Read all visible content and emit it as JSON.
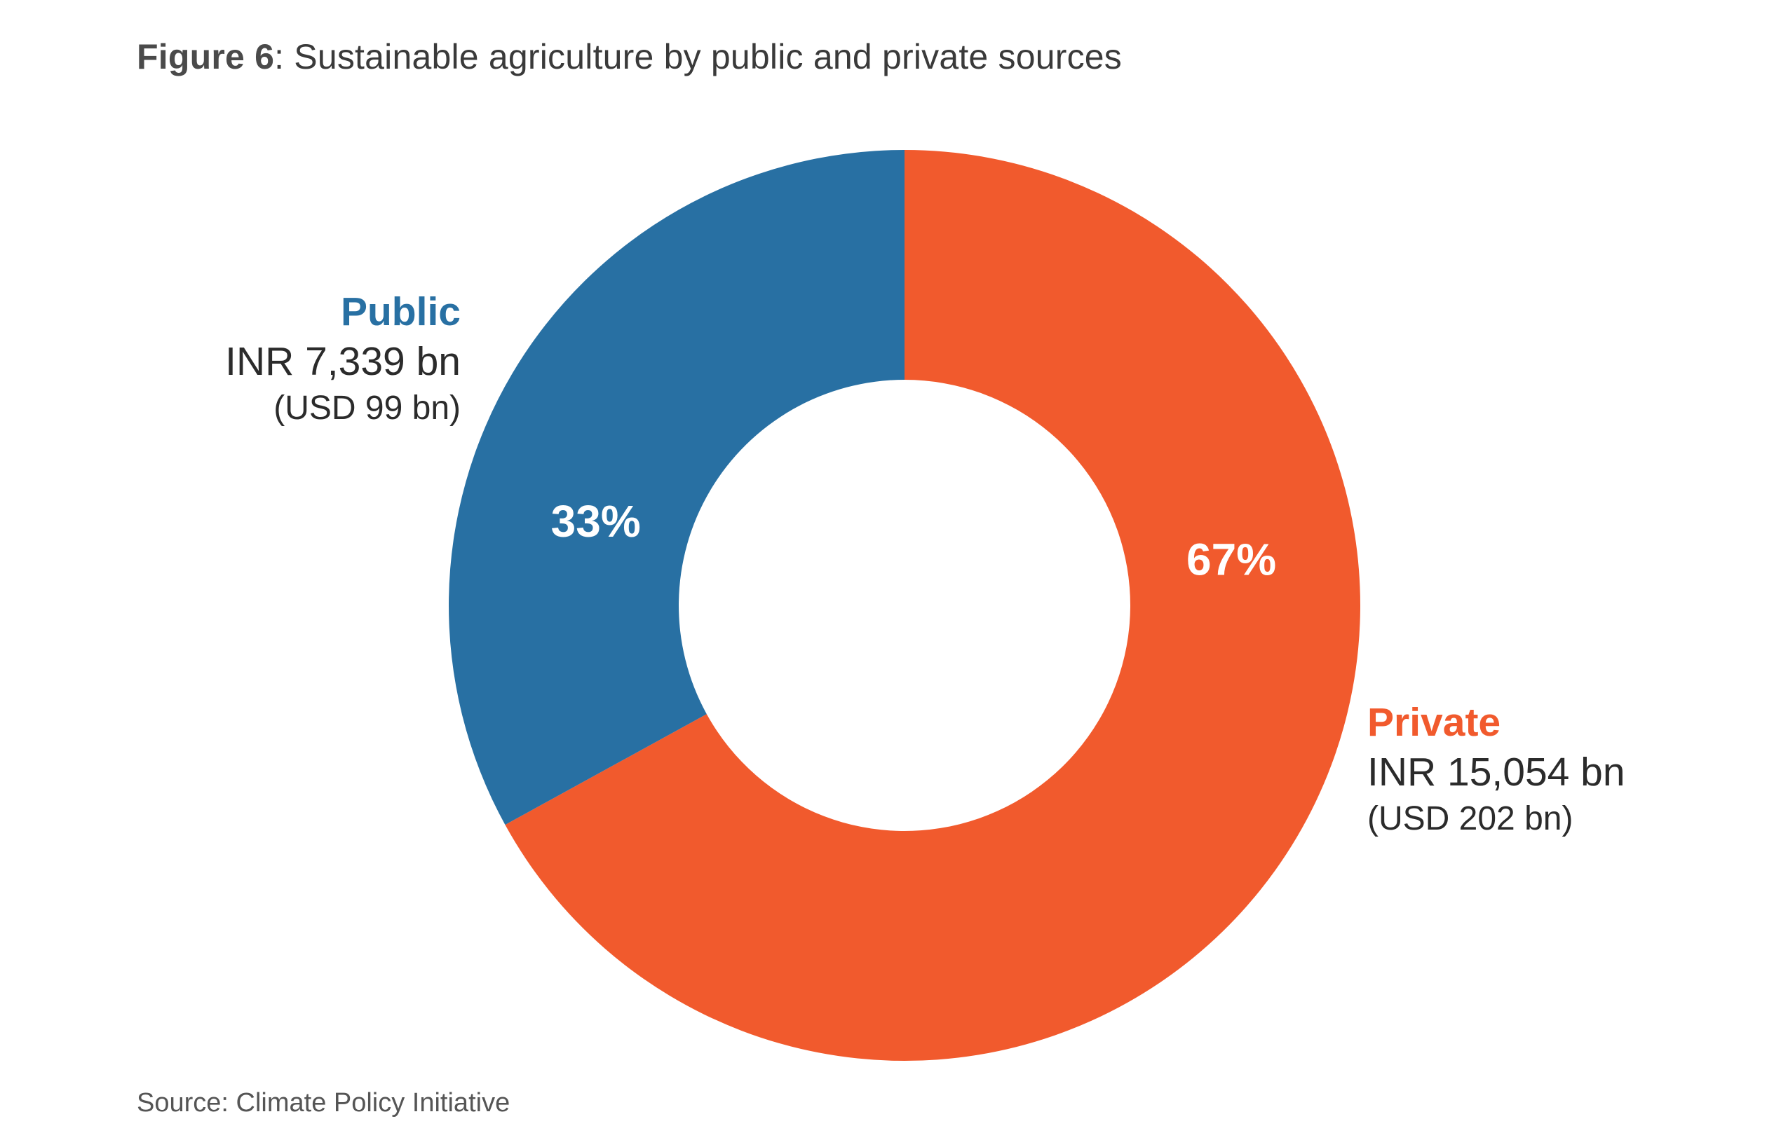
{
  "title": {
    "label": "Figure 6",
    "separator": ":",
    "text": "Sustainable agriculture by public and private sources"
  },
  "source": "Source: Climate Policy Initiative",
  "chart_data": {
    "type": "pie",
    "donut": true,
    "slices": [
      {
        "name": "Public",
        "percent": 33,
        "percent_label": "33%",
        "value_inr": "INR 7,339 bn",
        "value_usd": "(USD 99 bn)",
        "color": "#2870a3"
      },
      {
        "name": "Private",
        "percent": 67,
        "percent_label": "67%",
        "value_inr": "INR 15,054 bn",
        "value_usd": "(USD 202 bn)",
        "color": "#f15a2d"
      }
    ]
  }
}
